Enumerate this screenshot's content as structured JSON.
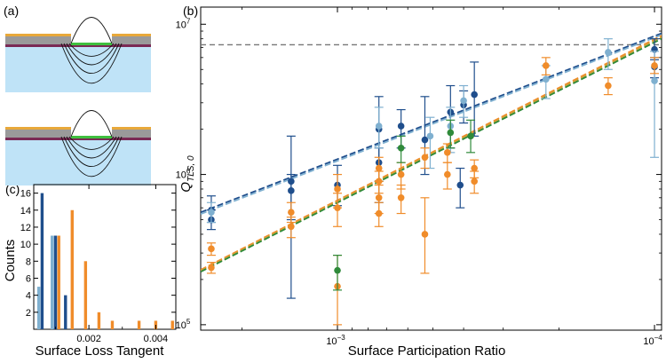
{
  "panels": {
    "a": "(a)",
    "b": "(b)",
    "c": "(c)"
  },
  "colors": {
    "dark_blue": "#1f4e8c",
    "light_blue": "#7fb0d0",
    "orange": "#f08c2a",
    "green": "#2f8a3a",
    "gold": "#e8a83a",
    "gray_layer": "#9a9a9a",
    "purple_layer": "#7a2a55",
    "green_junction": "#3fbf3f",
    "substrate": "#bfe3f7"
  },
  "chart_data": [
    {
      "id": "main-scatter",
      "type": "scatter",
      "xscale": "log",
      "yscale": "log",
      "x_reversed": true,
      "xlabel": "Surface Participation Ratio",
      "ylabel": "Q",
      "ylabel_sub": "TLS, 0",
      "xlim": [
        0.0027,
        9.5e-05
      ],
      "ylim": [
        92000,
        13000000
      ],
      "xticks": [
        {
          "value": 0.001,
          "base": "10",
          "exp": "−3"
        },
        {
          "value": 0.0001,
          "base": "10",
          "exp": "−4"
        }
      ],
      "yticks": [
        {
          "value": 100000,
          "base": "10",
          "exp": "5"
        },
        {
          "value": 1000000,
          "base": "10",
          "exp": "6"
        },
        {
          "value": 10000000,
          "base": "10",
          "exp": "7"
        }
      ],
      "reference_line": {
        "y": 7300000,
        "style": "dashed",
        "color": "#777777"
      },
      "fit_lines": [
        {
          "name": "dark blue fit",
          "color": "#1f4e8c",
          "x": [
            0.0027,
            9.5e-05
          ],
          "y": [
            560000,
            8700000
          ]
        },
        {
          "name": "light blue fit",
          "color": "#7fb0d0",
          "x": [
            0.0027,
            9.5e-05
          ],
          "y": [
            545000,
            8500000
          ]
        },
        {
          "name": "orange fit",
          "color": "#f08c2a",
          "x": [
            0.0027,
            9.5e-05
          ],
          "y": [
            232000,
            8400000
          ]
        },
        {
          "name": "gold fit",
          "color": "#c9a23a",
          "x": [
            0.0027,
            9.5e-05
          ],
          "y": [
            228000,
            8200000
          ]
        },
        {
          "name": "green fit",
          "color": "#2f8a3a",
          "x": [
            0.0027,
            9.5e-05
          ],
          "y": [
            225000,
            8000000
          ]
        }
      ],
      "series": [
        {
          "name": "dark blue",
          "color": "#1f4e8c",
          "points": [
            {
              "x": 0.0025,
              "y": 580000,
              "lo": 480000,
              "hi": 720000
            },
            {
              "x": 0.0025,
              "y": 500000,
              "lo": 430000,
              "hi": 580000
            },
            {
              "x": 0.0014,
              "y": 900000,
              "lo": 150000,
              "hi": 1800000
            },
            {
              "x": 0.0014,
              "y": 780000,
              "lo": 500000,
              "hi": 1000000
            },
            {
              "x": 0.001,
              "y": 850000,
              "lo": 620000,
              "hi": 1150000
            },
            {
              "x": 0.00074,
              "y": 2000000,
              "lo": 650000,
              "hi": 3300000
            },
            {
              "x": 0.00074,
              "y": 1200000,
              "lo": 900000,
              "hi": 1500000
            },
            {
              "x": 0.00063,
              "y": 2100000,
              "lo": 1500000,
              "hi": 2700000
            },
            {
              "x": 0.00053,
              "y": 1700000,
              "lo": 1000000,
              "hi": 3300000
            },
            {
              "x": 0.00044,
              "y": 2600000,
              "lo": 1500000,
              "hi": 3900000
            },
            {
              "x": 0.0004,
              "y": 2900000,
              "lo": 2200000,
              "hi": 3600000
            },
            {
              "x": 0.00037,
              "y": 3400000,
              "lo": 1800000,
              "hi": 5600000
            },
            {
              "x": 0.00041,
              "y": 850000,
              "lo": 600000,
              "hi": 1100000
            },
            {
              "x": 0.0001,
              "y": 6800000,
              "lo": 5800000,
              "hi": 8000000
            },
            {
              "x": 0.0001,
              "y": 5200000,
              "lo": 4400000,
              "hi": 6000000
            }
          ]
        },
        {
          "name": "light blue",
          "color": "#7fb0d0",
          "points": [
            {
              "x": 0.0025,
              "y": 560000,
              "lo": 480000,
              "hi": 650000
            },
            {
              "x": 0.00074,
              "y": 2100000,
              "lo": 1500000,
              "hi": 2800000
            },
            {
              "x": 0.00051,
              "y": 1800000,
              "lo": 1100000,
              "hi": 2400000
            },
            {
              "x": 0.00044,
              "y": 2100000,
              "lo": 1400000,
              "hi": 2800000
            },
            {
              "x": 0.0004,
              "y": 3100000,
              "lo": 2400000,
              "hi": 3900000
            },
            {
              "x": 0.00022,
              "y": 4300000,
              "lo": 3200000,
              "hi": 5300000
            },
            {
              "x": 0.00014,
              "y": 6500000,
              "lo": 5000000,
              "hi": 8000000
            },
            {
              "x": 0.0001,
              "y": 4200000,
              "lo": 1300000,
              "hi": 6600000
            }
          ]
        },
        {
          "name": "orange",
          "color": "#f08c2a",
          "points": [
            {
              "x": 0.0025,
              "y": 320000,
              "lo": 290000,
              "hi": 350000
            },
            {
              "x": 0.0025,
              "y": 240000,
              "lo": 220000,
              "hi": 260000
            },
            {
              "x": 0.0014,
              "y": 560000,
              "lo": 480000,
              "hi": 650000
            },
            {
              "x": 0.0014,
              "y": 450000,
              "lo": 380000,
              "hi": 520000
            },
            {
              "x": 0.001,
              "y": 800000,
              "lo": 600000,
              "hi": 1000000
            },
            {
              "x": 0.001,
              "y": 600000,
              "lo": 450000,
              "hi": 750000
            },
            {
              "x": 0.001,
              "y": 180000,
              "lo": 100000,
              "hi": 290000
            },
            {
              "x": 0.00074,
              "y": 1100000,
              "lo": 900000,
              "hi": 1300000
            },
            {
              "x": 0.00074,
              "y": 900000,
              "lo": 750000,
              "hi": 1050000
            },
            {
              "x": 0.00074,
              "y": 700000,
              "lo": 550000,
              "hi": 850000
            },
            {
              "x": 0.00074,
              "y": 550000,
              "lo": 450000,
              "hi": 650000
            },
            {
              "x": 0.00063,
              "y": 1000000,
              "lo": 800000,
              "hi": 1200000
            },
            {
              "x": 0.00063,
              "y": 700000,
              "lo": 550000,
              "hi": 850000
            },
            {
              "x": 0.00053,
              "y": 400000,
              "lo": 220000,
              "hi": 700000
            },
            {
              "x": 0.00053,
              "y": 1300000,
              "lo": 1100000,
              "hi": 1500000
            },
            {
              "x": 0.00045,
              "y": 1400000,
              "lo": 1200000,
              "hi": 1600000
            },
            {
              "x": 0.00045,
              "y": 1000000,
              "lo": 800000,
              "hi": 1200000
            },
            {
              "x": 0.00037,
              "y": 1100000,
              "lo": 950000,
              "hi": 1250000
            },
            {
              "x": 0.00037,
              "y": 900000,
              "lo": 750000,
              "hi": 1050000
            },
            {
              "x": 0.00022,
              "y": 5300000,
              "lo": 4600000,
              "hi": 6000000
            },
            {
              "x": 0.00014,
              "y": 3900000,
              "lo": 3400000,
              "hi": 4400000
            },
            {
              "x": 0.0001,
              "y": 5300000,
              "lo": 4700000,
              "hi": 6000000
            }
          ]
        },
        {
          "name": "green",
          "color": "#2f8a3a",
          "points": [
            {
              "x": 0.001,
              "y": 230000,
              "lo": 170000,
              "hi": 290000
            },
            {
              "x": 0.00063,
              "y": 1500000,
              "lo": 1200000,
              "hi": 1800000
            },
            {
              "x": 0.00044,
              "y": 1900000,
              "lo": 1500000,
              "hi": 2300000
            },
            {
              "x": 0.00038,
              "y": 1800000,
              "lo": 1400000,
              "hi": 2300000
            }
          ]
        }
      ]
    },
    {
      "id": "histogram",
      "type": "bar",
      "xlabel": "Surface Loss Tangent",
      "ylabel": "Counts",
      "xlim": [
        0.00035,
        0.0046
      ],
      "ylim": [
        0,
        17
      ],
      "xticks": [
        {
          "value": 0.002,
          "label": "0.002"
        },
        {
          "value": 0.004,
          "label": "0.004"
        }
      ],
      "yticks": [
        2,
        4,
        6,
        8,
        10,
        12,
        14,
        16
      ],
      "bar_width": 9e-05,
      "series": [
        {
          "name": "light blue",
          "color": "#7fb0d0",
          "bars": [
            {
              "x": 0.0005,
              "count": 5
            },
            {
              "x": 0.0009,
              "count": 11
            }
          ]
        },
        {
          "name": "dark blue",
          "color": "#1f4e8c",
          "bars": [
            {
              "x": 0.0006,
              "count": 16
            },
            {
              "x": 0.001,
              "count": 11
            },
            {
              "x": 0.0013,
              "count": 4
            }
          ]
        },
        {
          "name": "orange",
          "color": "#f08c2a",
          "bars": [
            {
              "x": 0.0011,
              "count": 11
            },
            {
              "x": 0.0015,
              "count": 14
            },
            {
              "x": 0.0019,
              "count": 8
            },
            {
              "x": 0.0023,
              "count": 2
            },
            {
              "x": 0.0027,
              "count": 1
            },
            {
              "x": 0.0035,
              "count": 1
            },
            {
              "x": 0.004,
              "count": 1
            },
            {
              "x": 0.0045,
              "count": 1
            }
          ]
        }
      ]
    }
  ]
}
